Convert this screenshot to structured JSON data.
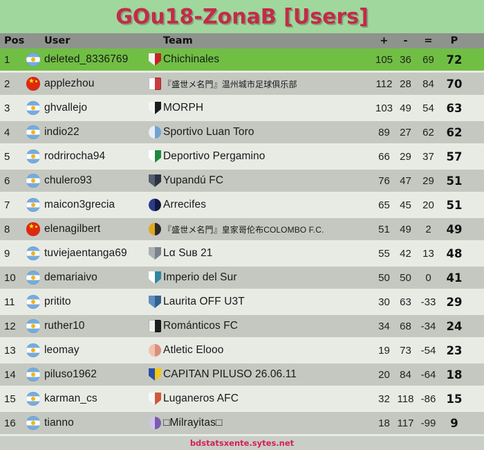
{
  "title": "GOu18-ZonaB [Users]",
  "footer": {
    "link": "bdstatsxente.sytes.net"
  },
  "colors": {
    "page_bg": "#a0d79c",
    "title_red": "#c32b48",
    "header_bg": "#8e938d",
    "row_green": "#70bf44",
    "row_dark": "#c5c8c1",
    "row_light": "#e8eae4",
    "separator": "#e9ece3",
    "footer_bg": "#c9cfc4",
    "footer_red": "#d61e5e"
  },
  "table": {
    "headers": {
      "pos": "Pos",
      "user": "User",
      "team": "Team",
      "plus": "+",
      "minus": "-",
      "equal": "=",
      "points": "P"
    },
    "rows": [
      {
        "pos": 1,
        "flag": "argentina",
        "user": "deleted_8336769",
        "team": "Chichinales",
        "plus": 105,
        "minus": 36,
        "equal": 69,
        "points": 72,
        "highlight": true,
        "badge": {
          "shape": "shield",
          "colors": [
            "#f2f2f2",
            "#c42323"
          ]
        }
      },
      {
        "pos": 2,
        "flag": "china",
        "user": "applezhou",
        "team": "『盛世メ名門』温州城市足球俱乐部",
        "plus": 112,
        "minus": 28,
        "equal": 84,
        "points": 70,
        "highlight": false,
        "badge": {
          "shape": "square",
          "colors": [
            "#fdfdfd",
            "#cc3b3b"
          ]
        }
      },
      {
        "pos": 3,
        "flag": "argentina",
        "user": "ghvallejo",
        "team": "MORPH",
        "plus": 103,
        "minus": 49,
        "equal": 54,
        "points": 63,
        "highlight": false,
        "badge": {
          "shape": "shield",
          "colors": [
            "#f5f5f5",
            "#1c1c1c"
          ]
        }
      },
      {
        "pos": 4,
        "flag": "argentina",
        "user": "indio22",
        "team": "Sportivo Luan Toro",
        "plus": 89,
        "minus": 27,
        "equal": 62,
        "points": 62,
        "highlight": false,
        "badge": {
          "shape": "circle",
          "colors": [
            "#e8eef5",
            "#6fa3cf"
          ]
        }
      },
      {
        "pos": 5,
        "flag": "argentina",
        "user": "rodrirocha94",
        "team": "Deportivo Pergamino",
        "plus": 66,
        "minus": 29,
        "equal": 37,
        "points": 57,
        "highlight": false,
        "badge": {
          "shape": "shield",
          "colors": [
            "#ffffff",
            "#1f8a3d"
          ]
        }
      },
      {
        "pos": 6,
        "flag": "argentina",
        "user": "chulero93",
        "team": "Yupandú FC",
        "plus": 76,
        "minus": 47,
        "equal": 29,
        "points": 51,
        "highlight": false,
        "badge": {
          "shape": "shield",
          "colors": [
            "#555e6e",
            "#2b3342"
          ]
        }
      },
      {
        "pos": 7,
        "flag": "argentina",
        "user": "maicon3grecia",
        "team": "Arrecifes",
        "plus": 65,
        "minus": 45,
        "equal": 20,
        "points": 51,
        "highlight": false,
        "badge": {
          "shape": "circle",
          "colors": [
            "#2a3a8c",
            "#101a40"
          ]
        }
      },
      {
        "pos": 8,
        "flag": "china",
        "user": "elenagilbert",
        "team": "『盛世メ名門』皇家哥伦布COLOMBO F.C.",
        "plus": 51,
        "minus": 49,
        "equal": 2,
        "points": 49,
        "highlight": false,
        "badge": {
          "shape": "circle",
          "colors": [
            "#e0a81e",
            "#2a2a2a"
          ]
        }
      },
      {
        "pos": 9,
        "flag": "argentina",
        "user": "tuviejaentanga69",
        "team": "Lα Suʙ 21",
        "plus": 55,
        "minus": 42,
        "equal": 13,
        "points": 48,
        "highlight": false,
        "badge": {
          "shape": "shield",
          "colors": [
            "#aab0b6",
            "#7c828a"
          ]
        }
      },
      {
        "pos": 10,
        "flag": "argentina",
        "user": "demariaivo",
        "team": "Imperio del Sur",
        "plus": 50,
        "minus": 50,
        "equal": 0,
        "points": 41,
        "highlight": false,
        "badge": {
          "shape": "shield",
          "colors": [
            "#ffffff",
            "#2f87a0"
          ]
        }
      },
      {
        "pos": 11,
        "flag": "argentina",
        "user": "pritito",
        "team": "Laurita OFF U3T",
        "plus": 30,
        "minus": 63,
        "equal": -33,
        "points": 29,
        "highlight": false,
        "badge": {
          "shape": "shield",
          "colors": [
            "#5e8fc0",
            "#33618f"
          ]
        }
      },
      {
        "pos": 12,
        "flag": "argentina",
        "user": "ruther10",
        "team": "Románticos FC",
        "plus": 34,
        "minus": 68,
        "equal": -34,
        "points": 24,
        "highlight": false,
        "badge": {
          "shape": "square",
          "colors": [
            "#efefef",
            "#1d1d1d"
          ]
        }
      },
      {
        "pos": 13,
        "flag": "argentina",
        "user": "leomay",
        "team": "Atletic Elooo",
        "plus": 19,
        "minus": 73,
        "equal": -54,
        "points": 23,
        "highlight": false,
        "badge": {
          "shape": "circle",
          "colors": [
            "#f0c2ae",
            "#d98f7d"
          ]
        }
      },
      {
        "pos": 14,
        "flag": "argentina",
        "user": "piluso1962",
        "team": "CAPITAN PILUSO 26.06.11",
        "plus": 20,
        "minus": 84,
        "equal": -64,
        "points": 18,
        "highlight": false,
        "badge": {
          "shape": "shield",
          "colors": [
            "#2a4fa8",
            "#f3c713"
          ]
        }
      },
      {
        "pos": 15,
        "flag": "argentina",
        "user": "karman_cs",
        "team": "Luganeros AFC",
        "plus": 32,
        "minus": 118,
        "equal": -86,
        "points": 15,
        "highlight": false,
        "badge": {
          "shape": "shield",
          "colors": [
            "#f7f7f7",
            "#d2573a"
          ]
        }
      },
      {
        "pos": 16,
        "flag": "argentina",
        "user": "tianno",
        "team": "□Milrayitas□",
        "plus": 18,
        "minus": 117,
        "equal": -99,
        "points": 9,
        "highlight": false,
        "badge": {
          "shape": "circle",
          "colors": [
            "#cfc3e8",
            "#7a5bb0"
          ]
        }
      }
    ]
  }
}
